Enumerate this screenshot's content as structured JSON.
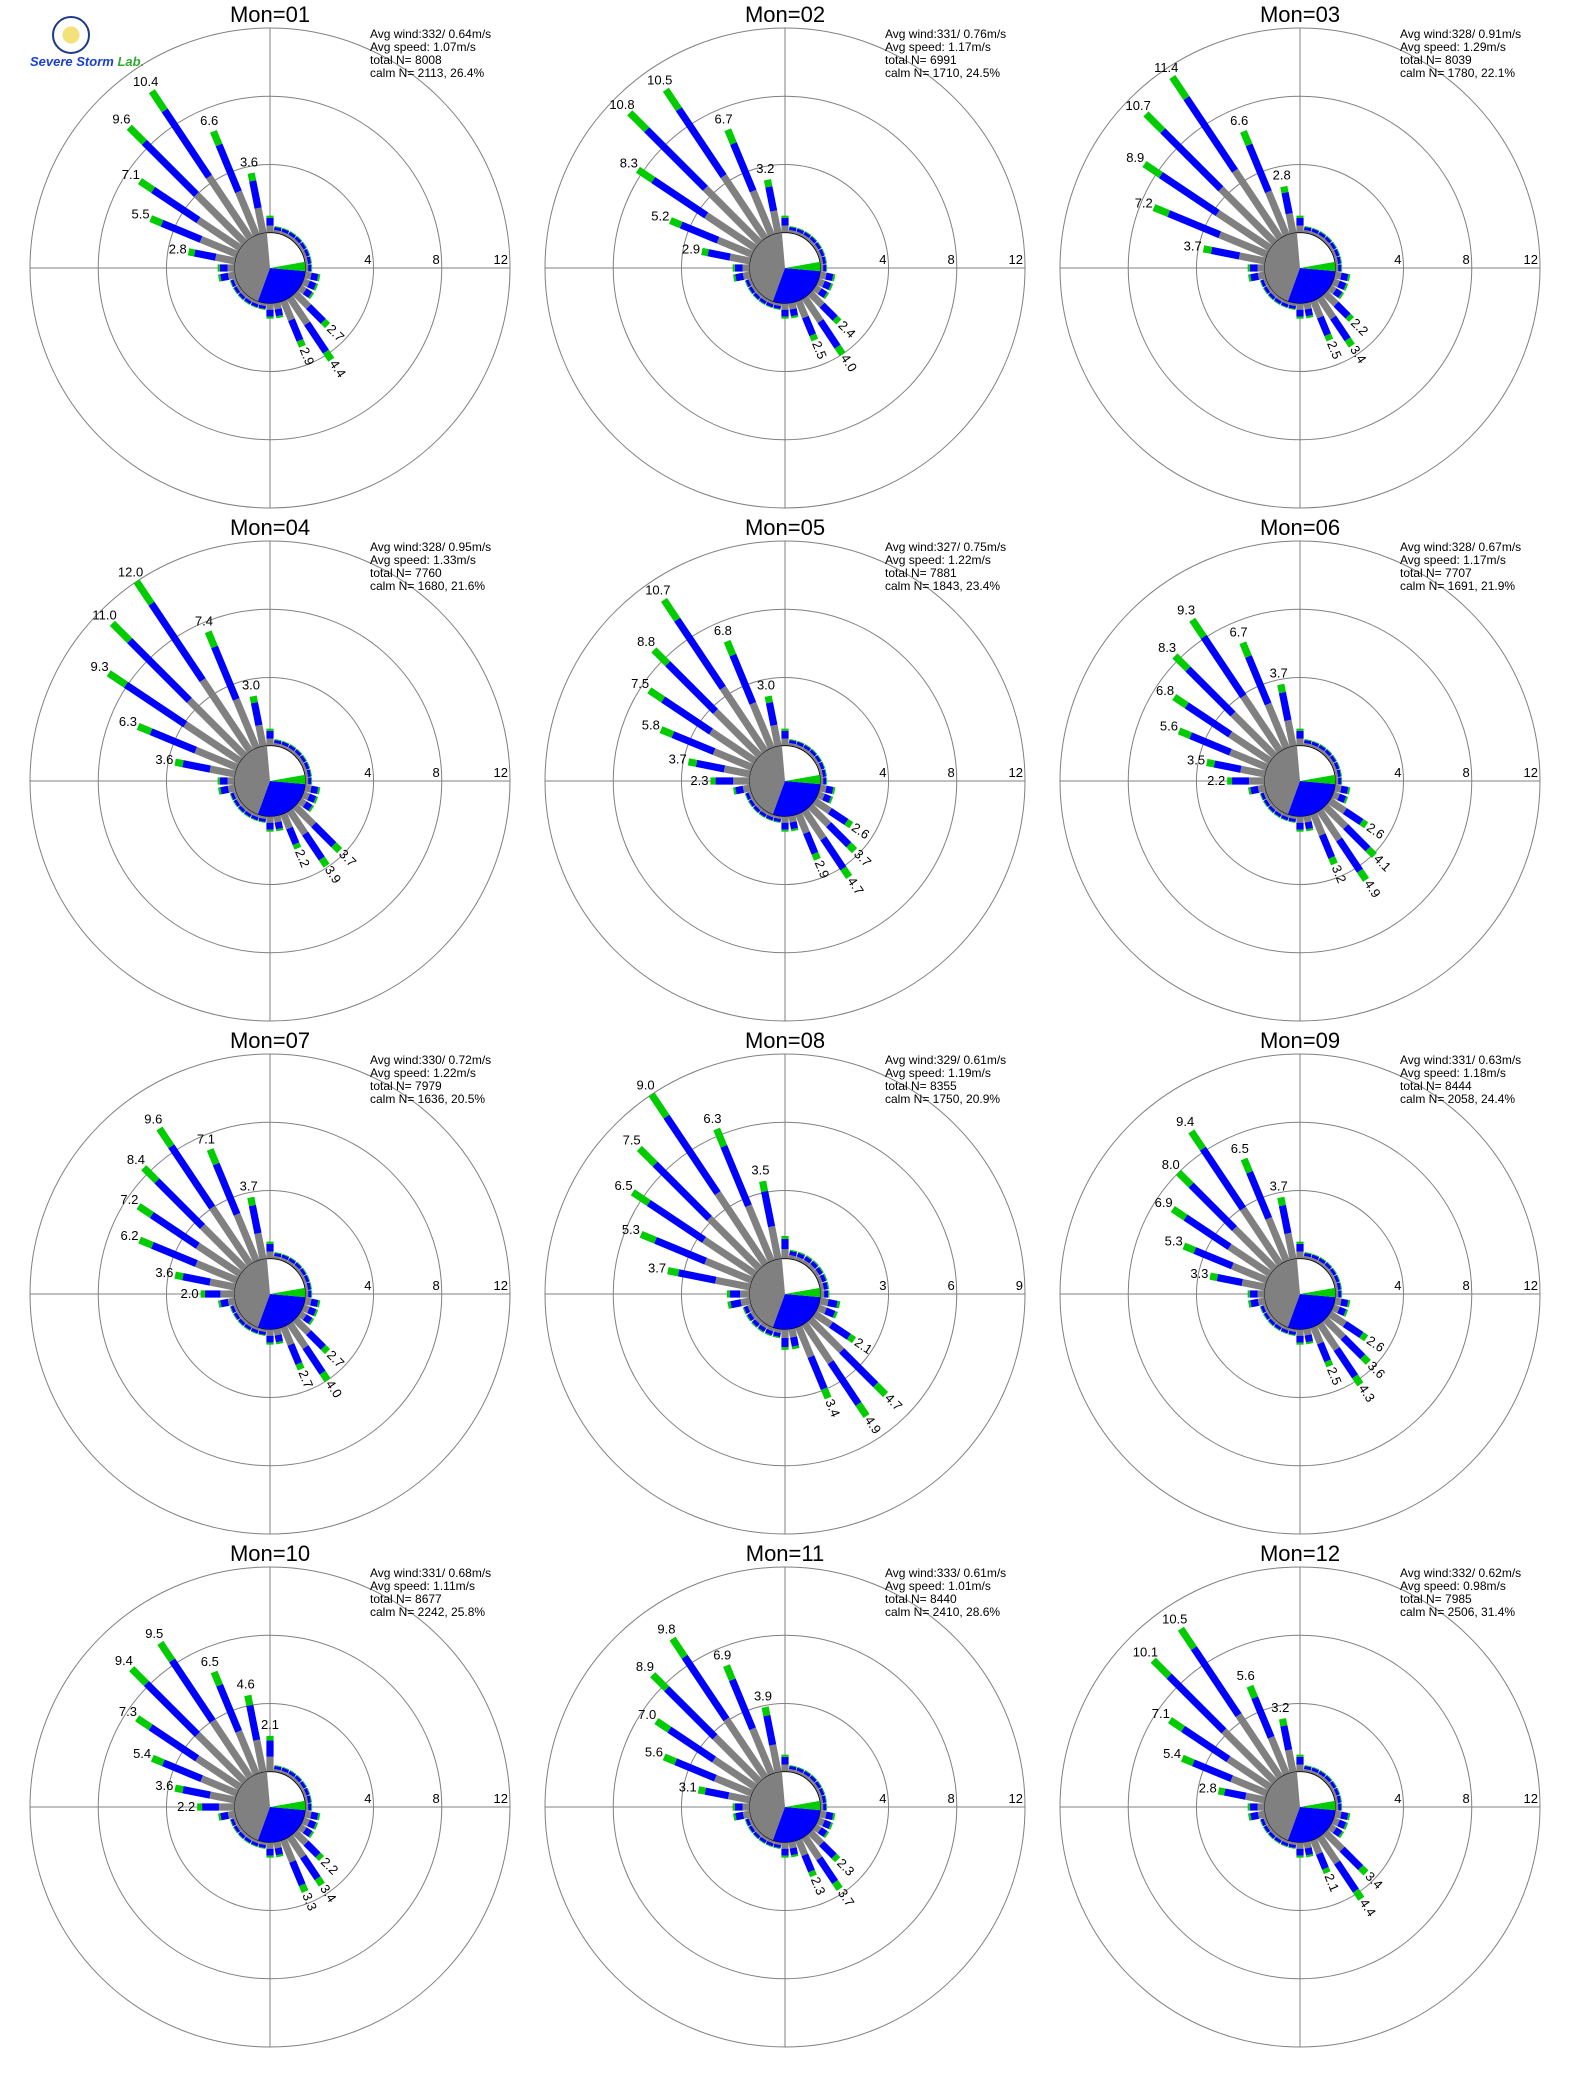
{
  "logo": {
    "text_a": "Severe Storm",
    "text_b": "Lab."
  },
  "colors": {
    "calm_band": "#808080",
    "band_2": "#0000ff",
    "band_3": "#00cc00",
    "band_4": "#ff2020",
    "grid": "#808080"
  },
  "chart_data": [
    {
      "type": "polar-bar",
      "title": "Mon=01",
      "avg_wind": "332/ 0.64m/s",
      "avg_speed": "1.07m/s",
      "total_n": "8008",
      "calm": "2113,  26.4%",
      "rings": [
        4,
        8,
        12
      ],
      "labels": [
        {
          "dir": 326.25,
          "value": "10.4"
        },
        {
          "dir": 337.5,
          "value": "6.6"
        },
        {
          "dir": 315,
          "value": "9.6"
        },
        {
          "dir": 348.75,
          "value": "3.6"
        },
        {
          "dir": 303.75,
          "value": "7.1"
        },
        {
          "dir": 292.5,
          "value": "5.5"
        },
        {
          "dir": 281.25,
          "value": "2.8"
        },
        {
          "dir": 146.25,
          "value": "4.4"
        },
        {
          "dir": 135,
          "value": "2.7"
        },
        {
          "dir": 157.5,
          "value": "2.9"
        }
      ]
    },
    {
      "type": "polar-bar",
      "title": "Mon=02",
      "avg_wind": "331/ 0.76m/s",
      "avg_speed": "1.17m/s",
      "total_n": "6991",
      "calm": "1710,  24.5%",
      "rings": [
        4,
        8,
        12
      ],
      "labels": [
        {
          "dir": 315,
          "value": "10.8"
        },
        {
          "dir": 326.25,
          "value": "10.5"
        },
        {
          "dir": 303.75,
          "value": "8.3"
        },
        {
          "dir": 337.5,
          "value": "6.7"
        },
        {
          "dir": 292.5,
          "value": "5.2"
        },
        {
          "dir": 348.75,
          "value": "3.2"
        },
        {
          "dir": 281.25,
          "value": "2.9"
        },
        {
          "dir": 146.25,
          "value": "4.0"
        },
        {
          "dir": 157.5,
          "value": "2.5"
        },
        {
          "dir": 135,
          "value": "2.4"
        }
      ]
    },
    {
      "type": "polar-bar",
      "title": "Mon=03",
      "avg_wind": "328/ 0.91m/s",
      "avg_speed": "1.29m/s",
      "total_n": "8039",
      "calm": "1780,  22.1%",
      "rings": [
        4,
        8,
        12
      ],
      "labels": [
        {
          "dir": 326.25,
          "value": "11.4"
        },
        {
          "dir": 315,
          "value": "10.7"
        },
        {
          "dir": 303.75,
          "value": "8.9"
        },
        {
          "dir": 292.5,
          "value": "7.2"
        },
        {
          "dir": 337.5,
          "value": "6.6"
        },
        {
          "dir": 281.25,
          "value": "3.7"
        },
        {
          "dir": 348.75,
          "value": "2.8"
        },
        {
          "dir": 146.25,
          "value": "3.4"
        },
        {
          "dir": 157.5,
          "value": "2.5"
        },
        {
          "dir": 135,
          "value": "2.2"
        }
      ]
    },
    {
      "type": "polar-bar",
      "title": "Mon=04",
      "avg_wind": "328/ 0.95m/s",
      "avg_speed": "1.33m/s",
      "total_n": "7760",
      "calm": "1680,  21.6%",
      "rings": [
        4,
        8,
        12
      ],
      "labels": [
        {
          "dir": 326.25,
          "value": "12.0"
        },
        {
          "dir": 315,
          "value": "11.0"
        },
        {
          "dir": 303.75,
          "value": "9.3"
        },
        {
          "dir": 337.5,
          "value": "7.4"
        },
        {
          "dir": 292.5,
          "value": "6.3"
        },
        {
          "dir": 281.25,
          "value": "3.6"
        },
        {
          "dir": 348.75,
          "value": "3.0"
        },
        {
          "dir": 146.25,
          "value": "3.9"
        },
        {
          "dir": 135,
          "value": "3.7"
        },
        {
          "dir": 157.5,
          "value": "2.2"
        }
      ]
    },
    {
      "type": "polar-bar",
      "title": "Mon=05",
      "avg_wind": "327/ 0.75m/s",
      "avg_speed": "1.22m/s",
      "total_n": "7881",
      "calm": "1843,  23.4%",
      "rings": [
        4,
        8,
        12
      ],
      "labels": [
        {
          "dir": 326.25,
          "value": "10.7"
        },
        {
          "dir": 315,
          "value": "8.8"
        },
        {
          "dir": 303.75,
          "value": "7.5"
        },
        {
          "dir": 337.5,
          "value": "6.8"
        },
        {
          "dir": 292.5,
          "value": "5.8"
        },
        {
          "dir": 281.25,
          "value": "3.7"
        },
        {
          "dir": 348.75,
          "value": "3.0"
        },
        {
          "dir": 270,
          "value": "2.3"
        },
        {
          "dir": 146.25,
          "value": "4.7"
        },
        {
          "dir": 135,
          "value": "3.7"
        },
        {
          "dir": 157.5,
          "value": "2.9"
        },
        {
          "dir": 123.75,
          "value": "2.6"
        }
      ]
    },
    {
      "type": "polar-bar",
      "title": "Mon=06",
      "avg_wind": "328/ 0.67m/s",
      "avg_speed": "1.17m/s",
      "total_n": "7707",
      "calm": "1691,  21.9%",
      "rings": [
        4,
        8,
        12
      ],
      "labels": [
        {
          "dir": 326.25,
          "value": "9.3"
        },
        {
          "dir": 315,
          "value": "8.3"
        },
        {
          "dir": 303.75,
          "value": "6.8"
        },
        {
          "dir": 337.5,
          "value": "6.7"
        },
        {
          "dir": 292.5,
          "value": "5.6"
        },
        {
          "dir": 348.75,
          "value": "3.7"
        },
        {
          "dir": 281.25,
          "value": "3.5"
        },
        {
          "dir": 270,
          "value": "2.2"
        },
        {
          "dir": 146.25,
          "value": "4.9"
        },
        {
          "dir": 135,
          "value": "4.1"
        },
        {
          "dir": 157.5,
          "value": "3.2"
        },
        {
          "dir": 123.75,
          "value": "2.6"
        }
      ]
    },
    {
      "type": "polar-bar",
      "title": "Mon=07",
      "avg_wind": "330/ 0.72m/s",
      "avg_speed": "1.22m/s",
      "total_n": "7979",
      "calm": "1636,  20.5%",
      "rings": [
        4,
        8,
        12
      ],
      "labels": [
        {
          "dir": 326.25,
          "value": "9.6"
        },
        {
          "dir": 315,
          "value": "8.4"
        },
        {
          "dir": 303.75,
          "value": "7.2"
        },
        {
          "dir": 337.5,
          "value": "7.1"
        },
        {
          "dir": 292.5,
          "value": "6.2"
        },
        {
          "dir": 348.75,
          "value": "3.7"
        },
        {
          "dir": 281.25,
          "value": "3.6"
        },
        {
          "dir": 270,
          "value": "2.0"
        },
        {
          "dir": 146.25,
          "value": "4.0"
        },
        {
          "dir": 135,
          "value": "2.7"
        },
        {
          "dir": 157.5,
          "value": "2.7"
        }
      ]
    },
    {
      "type": "polar-bar",
      "title": "Mon=08",
      "avg_wind": "329/ 0.61m/s",
      "avg_speed": "1.19m/s",
      "total_n": "8355",
      "calm": "1750,  20.9%",
      "rings": [
        3,
        6,
        9
      ],
      "labels": [
        {
          "dir": 326.25,
          "value": "9.0"
        },
        {
          "dir": 315,
          "value": "7.5"
        },
        {
          "dir": 303.75,
          "value": "6.5"
        },
        {
          "dir": 337.5,
          "value": "6.3"
        },
        {
          "dir": 292.5,
          "value": "5.3"
        },
        {
          "dir": 281.25,
          "value": "3.7"
        },
        {
          "dir": 348.75,
          "value": "3.5"
        },
        {
          "dir": 146.25,
          "value": "4.9"
        },
        {
          "dir": 135,
          "value": "4.7"
        },
        {
          "dir": 157.5,
          "value": "3.4"
        },
        {
          "dir": 123.75,
          "value": "2.1"
        }
      ]
    },
    {
      "type": "polar-bar",
      "title": "Mon=09",
      "avg_wind": "331/ 0.63m/s",
      "avg_speed": "1.18m/s",
      "total_n": "8444",
      "calm": "2058,  24.4%",
      "rings": [
        4,
        8,
        12
      ],
      "labels": [
        {
          "dir": 326.25,
          "value": "9.4"
        },
        {
          "dir": 315,
          "value": "8.0"
        },
        {
          "dir": 303.75,
          "value": "6.9"
        },
        {
          "dir": 337.5,
          "value": "6.5"
        },
        {
          "dir": 292.5,
          "value": "5.3"
        },
        {
          "dir": 348.75,
          "value": "3.7"
        },
        {
          "dir": 281.25,
          "value": "3.3"
        },
        {
          "dir": 146.25,
          "value": "4.3"
        },
        {
          "dir": 135,
          "value": "3.6"
        },
        {
          "dir": 157.5,
          "value": "2.5"
        },
        {
          "dir": 123.75,
          "value": "2.6"
        }
      ]
    },
    {
      "type": "polar-bar",
      "title": "Mon=10",
      "avg_wind": "331/ 0.68m/s",
      "avg_speed": "1.11m/s",
      "total_n": "8677",
      "calm": "2242,  25.8%",
      "rings": [
        4,
        8,
        12
      ],
      "labels": [
        {
          "dir": 326.25,
          "value": "9.5"
        },
        {
          "dir": 315,
          "value": "9.4"
        },
        {
          "dir": 303.75,
          "value": "7.3"
        },
        {
          "dir": 337.5,
          "value": "6.5"
        },
        {
          "dir": 292.5,
          "value": "5.4"
        },
        {
          "dir": 348.75,
          "value": "4.6"
        },
        {
          "dir": 281.25,
          "value": "3.6"
        },
        {
          "dir": 270,
          "value": "2.2"
        },
        {
          "dir": 0,
          "value": "2.1"
        },
        {
          "dir": 146.25,
          "value": "3.4"
        },
        {
          "dir": 135,
          "value": "2.2"
        },
        {
          "dir": 157.5,
          "value": "3.3"
        }
      ]
    },
    {
      "type": "polar-bar",
      "title": "Mon=11",
      "avg_wind": "333/ 0.61m/s",
      "avg_speed": "1.01m/s",
      "total_n": "8440",
      "calm": "2410,  28.6%",
      "rings": [
        4,
        8,
        12
      ],
      "labels": [
        {
          "dir": 326.25,
          "value": "9.8"
        },
        {
          "dir": 315,
          "value": "8.9"
        },
        {
          "dir": 303.75,
          "value": "7.0"
        },
        {
          "dir": 337.5,
          "value": "6.9"
        },
        {
          "dir": 292.5,
          "value": "5.6"
        },
        {
          "dir": 348.75,
          "value": "3.9"
        },
        {
          "dir": 281.25,
          "value": "3.1"
        },
        {
          "dir": 146.25,
          "value": "3.7"
        },
        {
          "dir": 135,
          "value": "2.3"
        },
        {
          "dir": 157.5,
          "value": "2.3"
        }
      ]
    },
    {
      "type": "polar-bar",
      "title": "Mon=12",
      "avg_wind": "332/ 0.62m/s",
      "avg_speed": "0.98m/s",
      "total_n": "7985",
      "calm": "2506,  31.4%",
      "rings": [
        4,
        8,
        12
      ],
      "labels": [
        {
          "dir": 326.25,
          "value": "10.5"
        },
        {
          "dir": 315,
          "value": "10.1"
        },
        {
          "dir": 303.75,
          "value": "7.1"
        },
        {
          "dir": 337.5,
          "value": "5.6"
        },
        {
          "dir": 292.5,
          "value": "5.4"
        },
        {
          "dir": 348.75,
          "value": "3.2"
        },
        {
          "dir": 281.25,
          "value": "2.8"
        },
        {
          "dir": 146.25,
          "value": "4.4"
        },
        {
          "dir": 135,
          "value": "3.4"
        },
        {
          "dir": 157.5,
          "value": "2.1"
        }
      ]
    }
  ]
}
